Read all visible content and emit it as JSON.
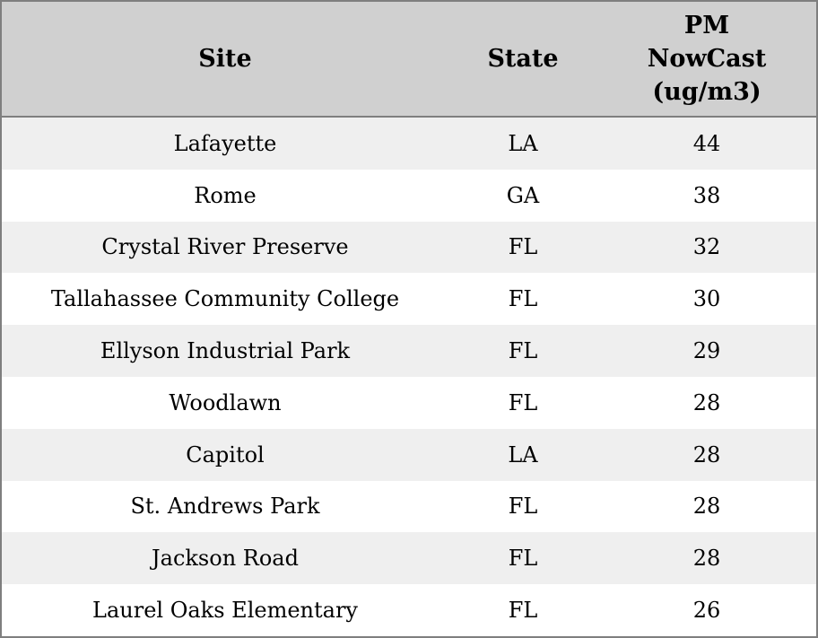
{
  "colors": {
    "header_bg": "#d0d0d0",
    "stripe_bg": "#efefef",
    "row_bg": "#ffffff",
    "border": "#7f7f7f",
    "text": "#000000"
  },
  "table": {
    "header": {
      "site": "Site",
      "state": "State",
      "pm_lines": [
        "PM",
        "NowCast",
        "(ug/m3)"
      ]
    },
    "rows": [
      {
        "site": "Lafayette",
        "state": "LA",
        "pm": "44"
      },
      {
        "site": "Rome",
        "state": "GA",
        "pm": "38"
      },
      {
        "site": "Crystal River Preserve",
        "state": "FL",
        "pm": "32"
      },
      {
        "site": "Tallahassee Community College",
        "state": "FL",
        "pm": "30"
      },
      {
        "site": "Ellyson Industrial Park",
        "state": "FL",
        "pm": "29"
      },
      {
        "site": "Woodlawn",
        "state": "FL",
        "pm": "28"
      },
      {
        "site": "Capitol",
        "state": "LA",
        "pm": "28"
      },
      {
        "site": "St. Andrews Park",
        "state": "FL",
        "pm": "28"
      },
      {
        "site": "Jackson Road",
        "state": "FL",
        "pm": "28"
      },
      {
        "site": "Laurel Oaks Elementary",
        "state": "FL",
        "pm": "26"
      }
    ]
  },
  "chart_data": {
    "type": "table",
    "title": "",
    "columns": [
      "Site",
      "State",
      "PM NowCast (ug/m3)"
    ],
    "rows": [
      [
        "Lafayette",
        "LA",
        44
      ],
      [
        "Rome",
        "GA",
        38
      ],
      [
        "Crystal River Preserve",
        "FL",
        32
      ],
      [
        "Tallahassee Community College",
        "FL",
        30
      ],
      [
        "Ellyson Industrial Park",
        "FL",
        29
      ],
      [
        "Woodlawn",
        "FL",
        28
      ],
      [
        "Capitol",
        "LA",
        28
      ],
      [
        "St. Andrews Park",
        "FL",
        28
      ],
      [
        "Jackson Road",
        "FL",
        28
      ],
      [
        "Laurel Oaks Elementary",
        "FL",
        26
      ]
    ],
    "layout_hints": {
      "striped_rows": true,
      "header_bold": true,
      "all_text_centered": true
    }
  }
}
